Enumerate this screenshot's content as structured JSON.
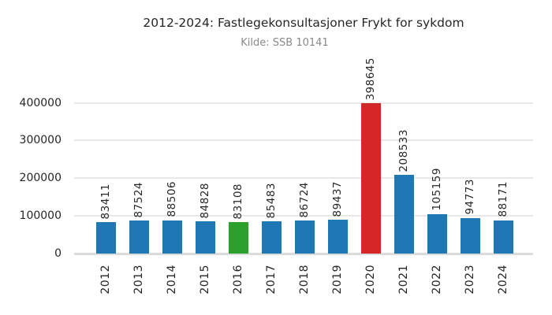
{
  "chart_data": {
    "type": "bar",
    "title": "2012-2024: Fastlegekonsultasjoner Frykt for sykdom",
    "subtitle": "Kilde: SSB 10141",
    "categories": [
      "2012",
      "2013",
      "2014",
      "2015",
      "2016",
      "2017",
      "2018",
      "2019",
      "2020",
      "2021",
      "2022",
      "2023",
      "2024"
    ],
    "values": [
      83411,
      87524,
      88506,
      84828,
      83108,
      85483,
      86724,
      89437,
      398645,
      208533,
      105159,
      94773,
      88171
    ],
    "value_labels": [
      "83411",
      "87524",
      "88506",
      "84828",
      "83108",
      "85483",
      "86724",
      "89437",
      "398645",
      "208533",
      "105159",
      "94773",
      "88171"
    ],
    "bar_colors": [
      "#1f77b4",
      "#1f77b4",
      "#1f77b4",
      "#1f77b4",
      "#2ca02c",
      "#1f77b4",
      "#1f77b4",
      "#1f77b4",
      "#d62728",
      "#1f77b4",
      "#1f77b4",
      "#1f77b4",
      "#1f77b4"
    ],
    "xlabel": "",
    "ylabel": "",
    "ylim": [
      0,
      400000
    ],
    "yticks": [
      0,
      100000,
      200000,
      300000,
      400000
    ],
    "ytick_labels": [
      "0",
      "100000",
      "200000",
      "300000",
      "400000"
    ],
    "grid": true,
    "legend": false,
    "xtick_rotation": 90,
    "value_label_rotation": 90
  },
  "colors": {
    "bar_default": "#1f77b4",
    "bar_highlight_2016": "#2ca02c",
    "bar_highlight_2020": "#d62728",
    "gridline": "#e8e8e8",
    "axis_line": "#dcdcdc",
    "title_text": "#262626",
    "subtitle_text": "#8a8a8a",
    "tick_text": "#262626",
    "background": "#ffffff"
  }
}
